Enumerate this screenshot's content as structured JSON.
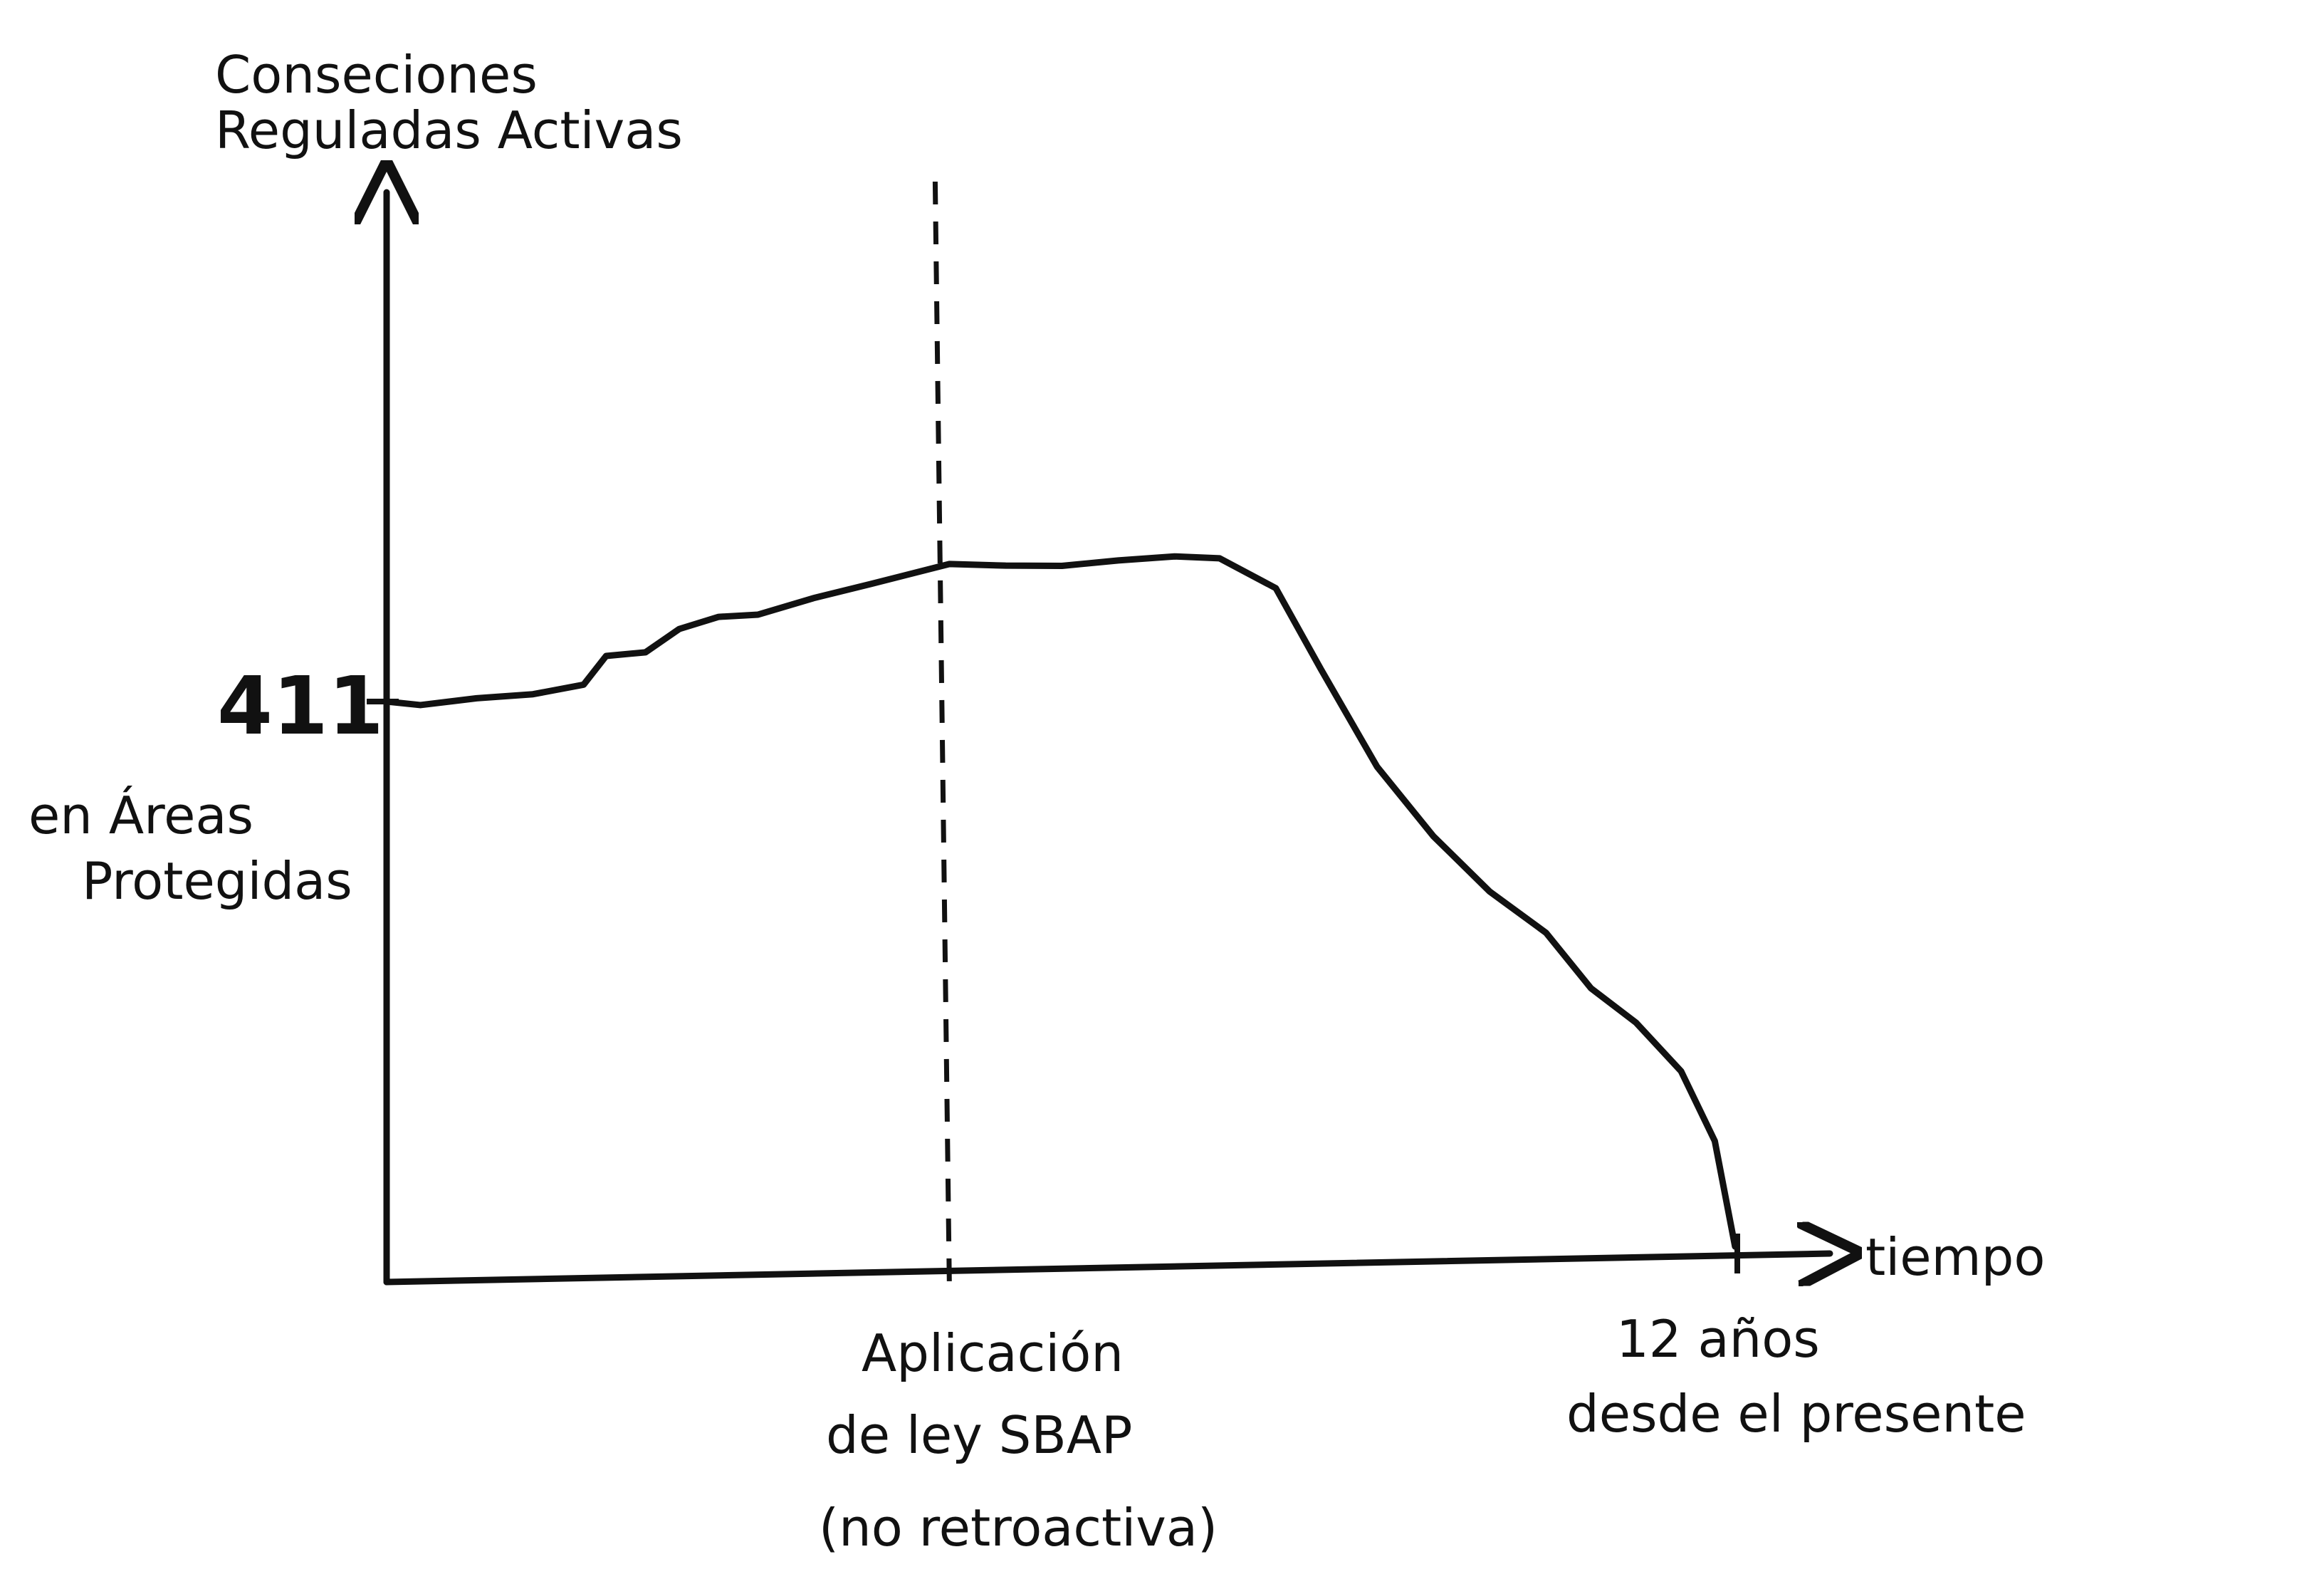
{
  "chart_data": {
    "type": "line",
    "ylabel": [
      "Conseciones",
      "Reguladas Activas"
    ],
    "xlabel": "tiempo",
    "y_tick": {
      "value": 411,
      "label": "411"
    },
    "y_tick_note": [
      "en Áreas",
      "Protegidas"
    ],
    "xlim": [
      0,
      12
    ],
    "ylim": [
      0,
      820
    ],
    "vline": {
      "x": 5,
      "label": [
        "Aplicación",
        "de ley SBAP",
        "(no retroactiva)"
      ]
    },
    "x_end_label": [
      "12 años",
      "desde el presente"
    ],
    "series": [
      {
        "x": [
          0,
          0.3,
          0.8,
          1.3,
          1.75,
          1.95,
          2.3,
          2.6,
          2.95,
          3.3,
          3.8,
          4.3,
          5.0,
          5.5,
          6.0,
          6.5,
          7.0,
          7.4,
          7.9,
          8.3,
          8.8,
          9.3,
          9.8,
          10.3,
          10.7,
          11.1,
          11.5,
          11.8,
          11.98
        ],
        "y": [
          411,
          408,
          412,
          414,
          420,
          440,
          442,
          458,
          466,
          467,
          478,
          487,
          500,
          498,
          497,
          500,
          502,
          500,
          478,
          420,
          350,
          300,
          260,
          230,
          190,
          165,
          130,
          80,
          5
        ]
      }
    ]
  },
  "colors": {
    "ink": "#111111",
    "background": "#ffffff"
  }
}
